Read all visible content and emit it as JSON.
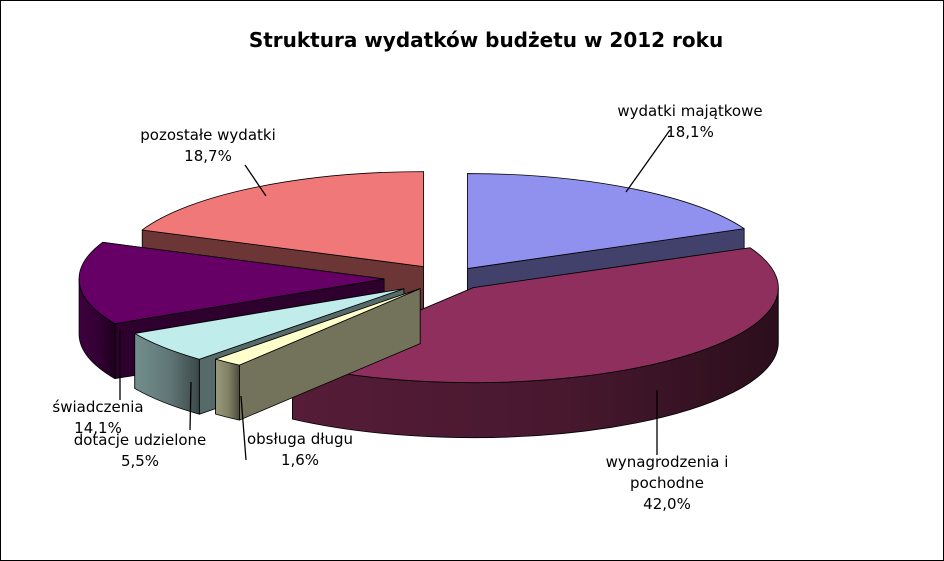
{
  "chart_data": {
    "type": "pie",
    "style": "3d-exploded",
    "title": "Struktura wydatków budżetu w 2012 roku",
    "legend": "none",
    "slices": [
      {
        "name": "wydatki majątkowe",
        "value": 18.1,
        "value_label": "18,1%",
        "color": "#9090ee"
      },
      {
        "name": "wynagrodzenia i pochodne",
        "name_lines": [
          "wynagrodzenia i",
          "pochodne"
        ],
        "value": 42.0,
        "value_label": "42,0%",
        "color": "#8f2f5d"
      },
      {
        "name": "obsługa długu",
        "value": 1.6,
        "value_label": "1,6%",
        "color": "#ffffcc"
      },
      {
        "name": "dotacje udzielone",
        "value": 5.5,
        "value_label": "5,5%",
        "color": "#c0ecec"
      },
      {
        "name": "świadczenia",
        "value": 14.1,
        "value_label": "14,1%",
        "color": "#660066"
      },
      {
        "name": "pozostałe wydatki",
        "value": 18.7,
        "value_label": "18,7%",
        "color": "#f07878"
      }
    ]
  }
}
